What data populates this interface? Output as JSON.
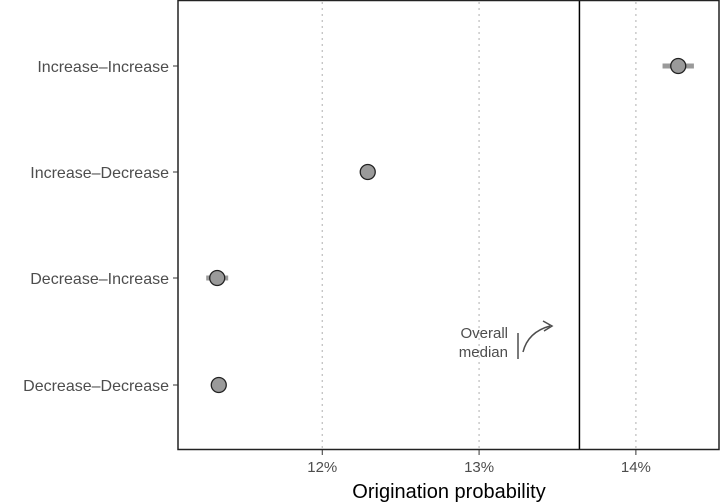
{
  "chart_data": {
    "type": "scatter",
    "title": "",
    "xlabel": "Origination probability",
    "ylabel": "",
    "xlim": [
      11.08,
      14.53
    ],
    "x_ticks": [
      12,
      13,
      14
    ],
    "x_tick_labels": [
      "12%",
      "13%",
      "14%"
    ],
    "categories": [
      "Increase–Increase",
      "Increase–Decrease",
      "Decrease–Increase",
      "Decrease–Decrease"
    ],
    "points": [
      {
        "category": "Increase–Increase",
        "value": 14.27,
        "lower": 14.17,
        "upper": 14.37
      },
      {
        "category": "Increase–Decrease",
        "value": 12.29,
        "lower": 12.27,
        "upper": 12.31
      },
      {
        "category": "Decrease–Increase",
        "value": 11.33,
        "lower": 11.26,
        "upper": 11.4
      },
      {
        "category": "Decrease–Decrease",
        "value": 11.34,
        "lower": 11.32,
        "upper": 11.36
      }
    ],
    "reference_line": {
      "value": 13.64,
      "label_line1": "Overall",
      "label_line2": "median"
    },
    "grid": "vertical dotted",
    "legend": "none",
    "colors": {
      "point_fill": "#9a9a9a",
      "point_stroke": "#222222",
      "errorbar": "#9a9a9a",
      "grid": "#bdbdbd",
      "frame": "#222222",
      "median_line": "#000000"
    }
  }
}
